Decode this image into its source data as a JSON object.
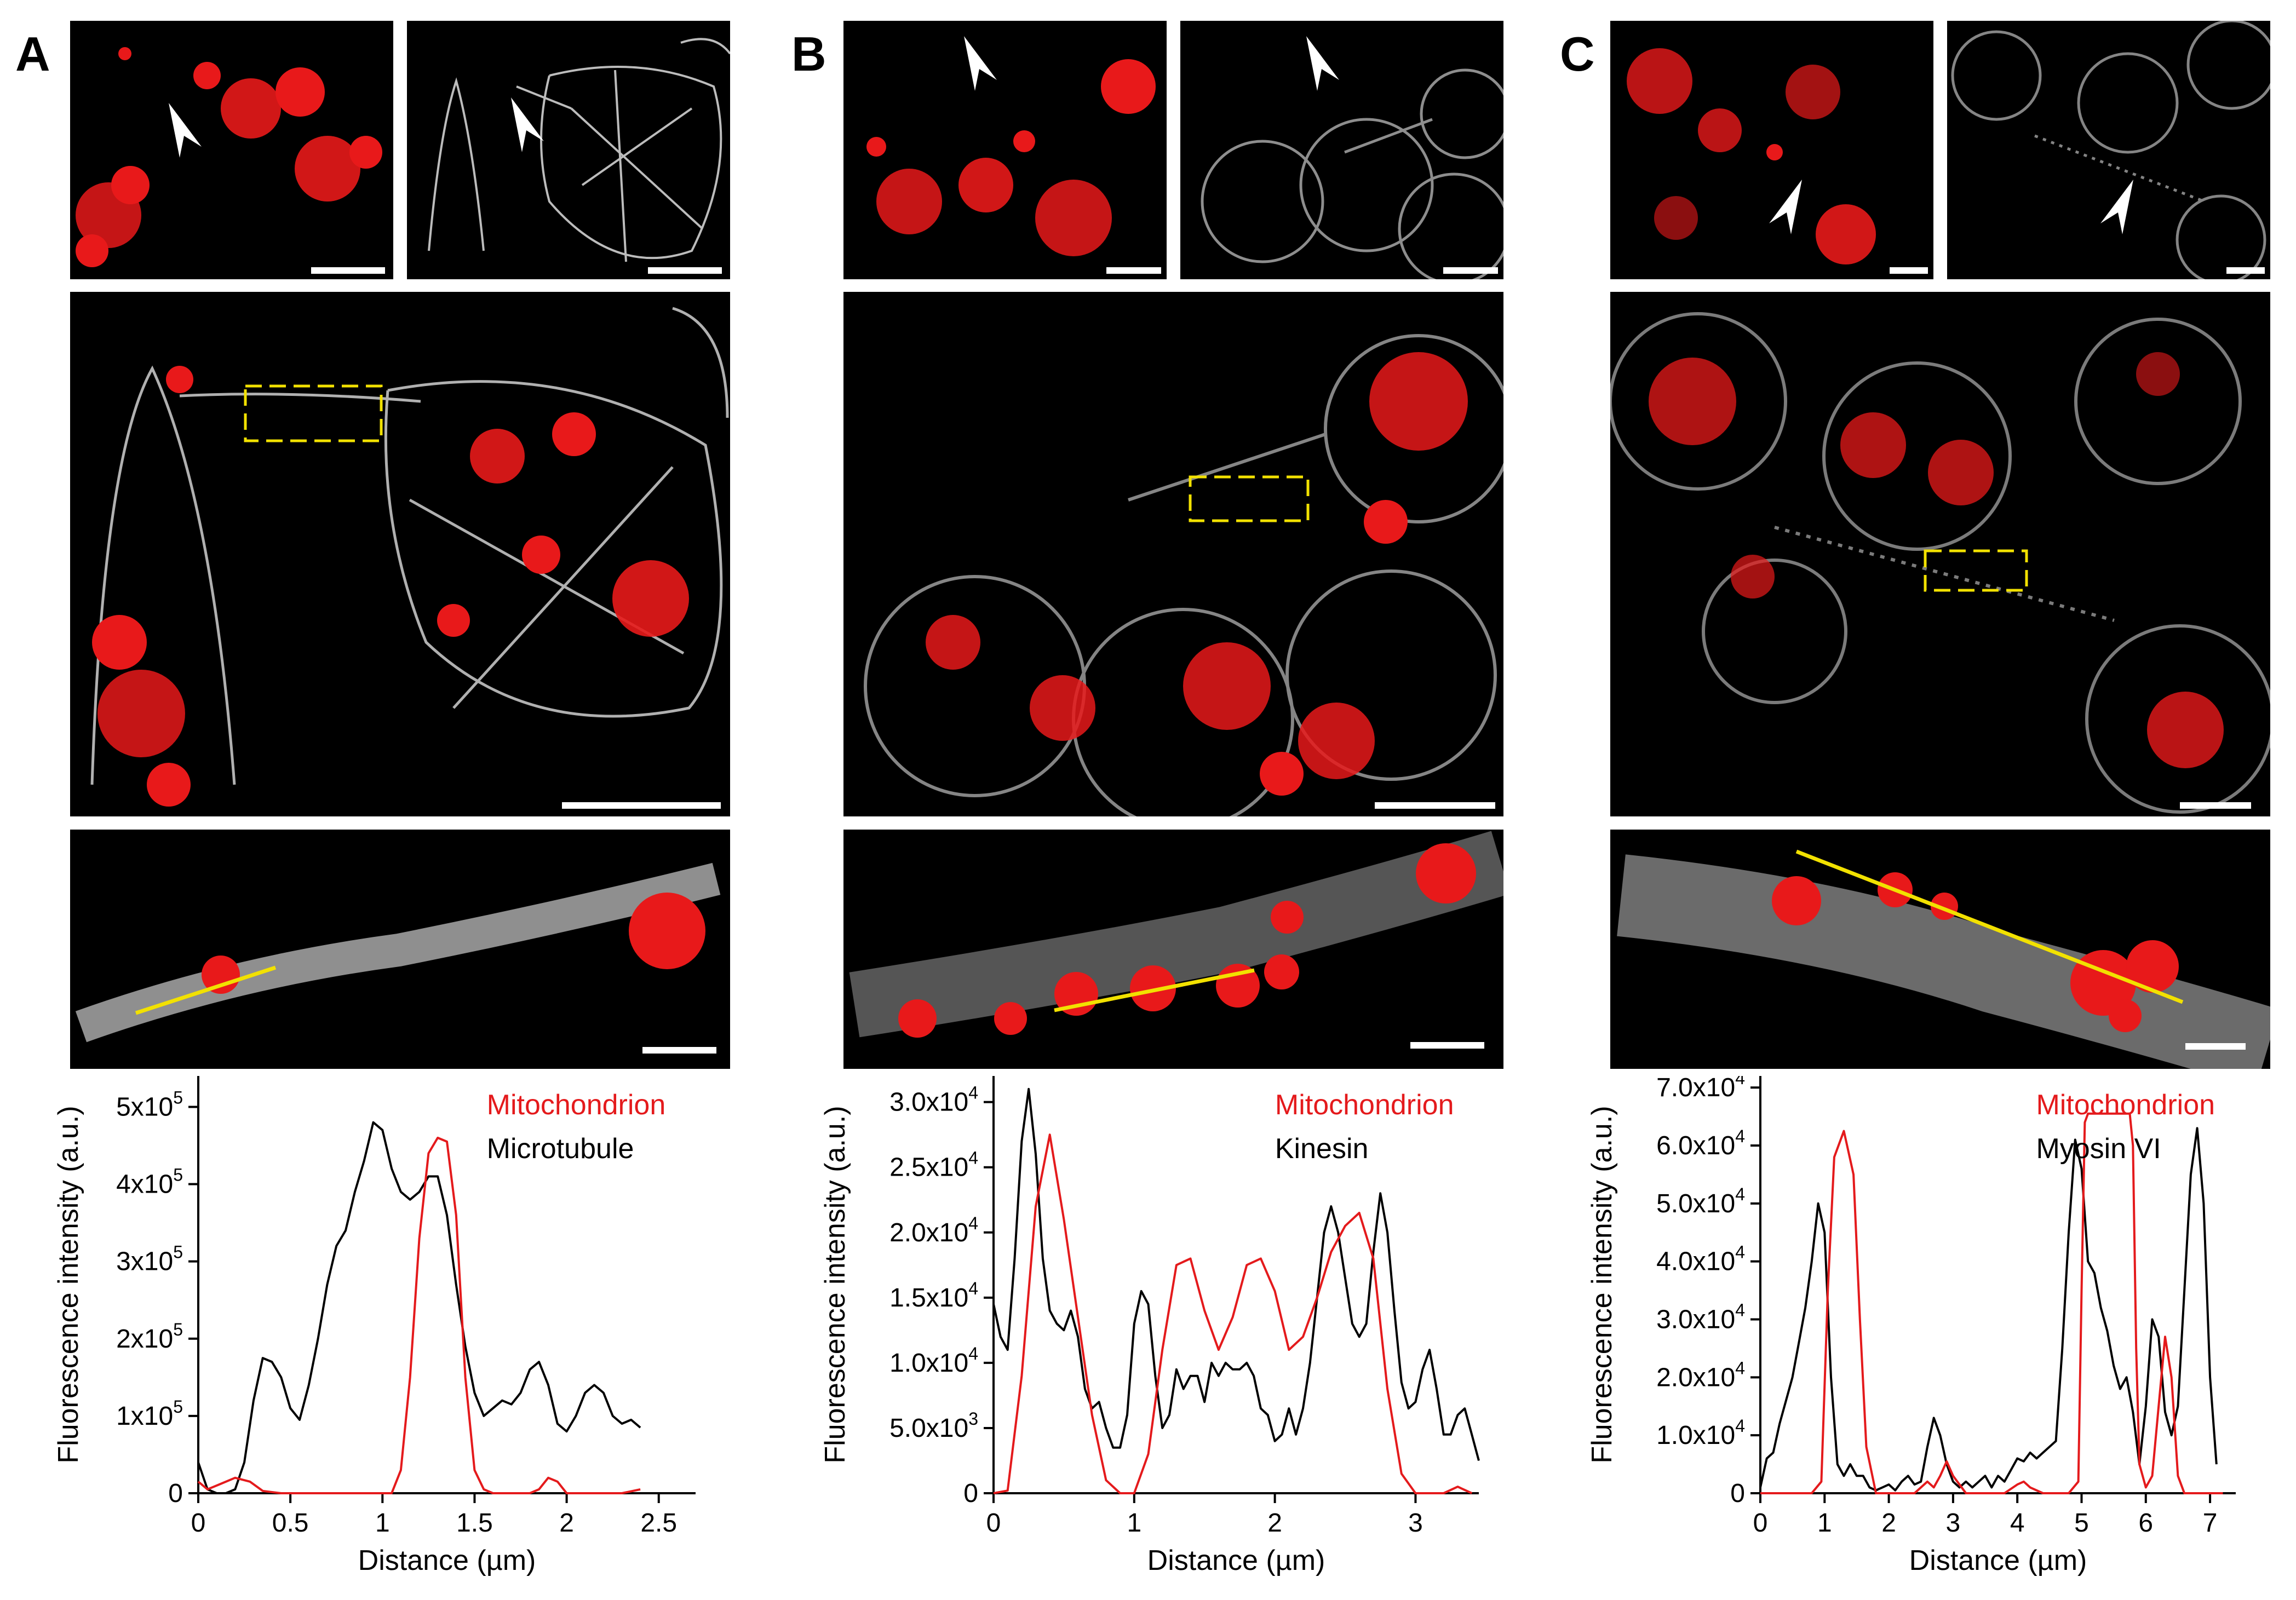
{
  "panels": [
    {
      "letter": "A"
    },
    {
      "letter": "B"
    },
    {
      "letter": "C"
    }
  ],
  "chart_data": [
    {
      "type": "line",
      "panel": "A",
      "xlabel": "Distance (µm)",
      "ylabel": "Fluorescence intensity (a.u.)",
      "xlim": [
        0,
        2.7
      ],
      "ylim": [
        0,
        540000
      ],
      "xticks": [
        0,
        0.5,
        1,
        1.5,
        2,
        2.5
      ],
      "xtick_labels": [
        "0",
        "0.5",
        "1",
        "1.5",
        "2",
        "2.5"
      ],
      "yticks": [
        0,
        100000,
        200000,
        300000,
        400000,
        500000
      ],
      "ytick_labels": [
        {
          "main": "0",
          "exp": ""
        },
        {
          "main": "1x10",
          "exp": "5"
        },
        {
          "main": "2x10",
          "exp": "5"
        },
        {
          "main": "3x10",
          "exp": "5"
        },
        {
          "main": "4x10",
          "exp": "5"
        },
        {
          "main": "5x10",
          "exp": "5"
        }
      ],
      "legend": "top-right",
      "series": [
        {
          "name": "Mitochondrion",
          "color": "#e41a1c",
          "x": [
            0,
            0.05,
            0.12,
            0.2,
            0.28,
            0.35,
            0.45,
            0.55,
            0.65,
            0.75,
            0.85,
            0.95,
            1.0,
            1.05,
            1.1,
            1.15,
            1.2,
            1.25,
            1.3,
            1.35,
            1.4,
            1.45,
            1.5,
            1.55,
            1.6,
            1.7,
            1.8,
            1.85,
            1.9,
            1.95,
            2.0,
            2.05,
            2.1,
            2.2,
            2.3,
            2.4
          ],
          "y": [
            15000,
            5000,
            12000,
            20000,
            15000,
            3000,
            0,
            0,
            0,
            0,
            0,
            0,
            0,
            0,
            30000,
            150000,
            330000,
            440000,
            460000,
            455000,
            360000,
            150000,
            30000,
            5000,
            0,
            0,
            0,
            5000,
            20000,
            15000,
            0,
            0,
            0,
            0,
            0,
            5000
          ]
        },
        {
          "name": "Microtubule",
          "color": "#000000",
          "x": [
            0,
            0.05,
            0.1,
            0.15,
            0.2,
            0.25,
            0.3,
            0.35,
            0.4,
            0.45,
            0.5,
            0.55,
            0.6,
            0.65,
            0.7,
            0.75,
            0.8,
            0.85,
            0.9,
            0.95,
            1.0,
            1.05,
            1.1,
            1.15,
            1.2,
            1.25,
            1.3,
            1.35,
            1.4,
            1.45,
            1.5,
            1.55,
            1.6,
            1.65,
            1.7,
            1.75,
            1.8,
            1.85,
            1.9,
            1.95,
            2.0,
            2.05,
            2.1,
            2.15,
            2.2,
            2.25,
            2.3,
            2.35,
            2.4
          ],
          "y": [
            40000,
            5000,
            0,
            0,
            5000,
            40000,
            120000,
            175000,
            170000,
            150000,
            110000,
            95000,
            140000,
            200000,
            270000,
            320000,
            340000,
            390000,
            430000,
            480000,
            470000,
            420000,
            390000,
            380000,
            390000,
            410000,
            410000,
            360000,
            270000,
            190000,
            130000,
            100000,
            110000,
            120000,
            115000,
            130000,
            160000,
            170000,
            140000,
            90000,
            80000,
            100000,
            130000,
            140000,
            130000,
            100000,
            90000,
            95000,
            85000
          ]
        }
      ]
    },
    {
      "type": "line",
      "panel": "B",
      "xlabel": "Distance (µm)",
      "ylabel": "Fluorescence intensity (a.u.)",
      "xlim": [
        0,
        3.45
      ],
      "ylim": [
        0,
        32000
      ],
      "xticks": [
        0,
        1,
        2,
        3
      ],
      "xtick_labels": [
        "0",
        "1",
        "2",
        "3"
      ],
      "yticks": [
        0,
        5000,
        10000,
        15000,
        20000,
        25000,
        30000
      ],
      "ytick_labels": [
        {
          "main": "0",
          "exp": ""
        },
        {
          "main": "5.0x10",
          "exp": "3"
        },
        {
          "main": "1.0x10",
          "exp": "4"
        },
        {
          "main": "1.5x10",
          "exp": "4"
        },
        {
          "main": "2.0x10",
          "exp": "4"
        },
        {
          "main": "2.5x10",
          "exp": "4"
        },
        {
          "main": "3.0x10",
          "exp": "4"
        }
      ],
      "legend": "top-right",
      "series": [
        {
          "name": "Mitochondrion",
          "color": "#e41a1c",
          "x": [
            0,
            0.1,
            0.2,
            0.3,
            0.4,
            0.5,
            0.6,
            0.7,
            0.8,
            0.9,
            1.0,
            1.1,
            1.2,
            1.3,
            1.4,
            1.5,
            1.6,
            1.7,
            1.8,
            1.9,
            2.0,
            2.1,
            2.2,
            2.3,
            2.4,
            2.5,
            2.6,
            2.7,
            2.8,
            2.9,
            3.0,
            3.1,
            3.2,
            3.3,
            3.4
          ],
          "y": [
            0,
            200,
            9000,
            22000,
            27500,
            21000,
            13500,
            6000,
            1000,
            0,
            0,
            3000,
            11000,
            17500,
            18000,
            14000,
            11000,
            13500,
            17500,
            18000,
            15500,
            11000,
            12000,
            15000,
            18500,
            20500,
            21500,
            18000,
            8000,
            1500,
            0,
            0,
            0,
            500,
            0
          ]
        },
        {
          "name": "Kinesin",
          "color": "#000000",
          "x": [
            0,
            0.05,
            0.1,
            0.15,
            0.2,
            0.25,
            0.3,
            0.35,
            0.4,
            0.45,
            0.5,
            0.55,
            0.6,
            0.65,
            0.7,
            0.75,
            0.8,
            0.85,
            0.9,
            0.95,
            1.0,
            1.05,
            1.1,
            1.15,
            1.2,
            1.25,
            1.3,
            1.35,
            1.4,
            1.45,
            1.5,
            1.55,
            1.6,
            1.65,
            1.7,
            1.75,
            1.8,
            1.85,
            1.9,
            1.95,
            2.0,
            2.05,
            2.1,
            2.15,
            2.2,
            2.25,
            2.3,
            2.35,
            2.4,
            2.45,
            2.5,
            2.55,
            2.6,
            2.65,
            2.7,
            2.75,
            2.8,
            2.85,
            2.9,
            2.95,
            3.0,
            3.05,
            3.1,
            3.15,
            3.2,
            3.25,
            3.3,
            3.35,
            3.4,
            3.45
          ],
          "y": [
            14500,
            12000,
            11000,
            18000,
            27000,
            31000,
            26000,
            18000,
            14000,
            13000,
            12500,
            14000,
            12000,
            8000,
            6500,
            7000,
            5000,
            3500,
            3500,
            6000,
            13000,
            15500,
            14500,
            9000,
            5000,
            6000,
            9500,
            8000,
            9000,
            9000,
            7000,
            10000,
            9000,
            10000,
            9500,
            9500,
            10000,
            9000,
            6500,
            6000,
            4000,
            4500,
            6500,
            4500,
            6500,
            10000,
            15000,
            20000,
            22000,
            20000,
            16500,
            13000,
            12000,
            13000,
            18500,
            23000,
            20000,
            14000,
            8500,
            6500,
            7000,
            9500,
            11000,
            8000,
            4500,
            4500,
            6000,
            6500,
            4500,
            2500
          ]
        }
      ]
    },
    {
      "type": "line",
      "panel": "C",
      "xlabel": "Distance (µm)",
      "ylabel": "Fluorescence intensity (a.u.)",
      "xlim": [
        0,
        7.4
      ],
      "ylim": [
        0,
        72000
      ],
      "xticks": [
        0,
        1,
        2,
        3,
        4,
        5,
        6,
        7
      ],
      "xtick_labels": [
        "0",
        "1",
        "2",
        "3",
        "4",
        "5",
        "6",
        "7"
      ],
      "yticks": [
        0,
        10000,
        20000,
        30000,
        40000,
        50000,
        60000,
        70000
      ],
      "ytick_labels": [
        {
          "main": "0",
          "exp": ""
        },
        {
          "main": "1.0x10",
          "exp": "4"
        },
        {
          "main": "2.0x10",
          "exp": "4"
        },
        {
          "main": "3.0x10",
          "exp": "4"
        },
        {
          "main": "4.0x10",
          "exp": "4"
        },
        {
          "main": "5.0x10",
          "exp": "4"
        },
        {
          "main": "6.0x10",
          "exp": "4"
        },
        {
          "main": "7.0x10",
          "exp": "4"
        }
      ],
      "legend": "top-right",
      "series": [
        {
          "name": "Mitochondrion",
          "color": "#e41a1c",
          "x": [
            0,
            0.5,
            0.8,
            0.95,
            1.05,
            1.15,
            1.3,
            1.45,
            1.55,
            1.65,
            1.8,
            2.0,
            2.4,
            2.5,
            2.6,
            2.7,
            2.8,
            2.9,
            3.0,
            3.2,
            3.8,
            4.0,
            4.1,
            4.2,
            4.4,
            4.6,
            4.8,
            4.95,
            5.0,
            5.05,
            5.1,
            5.75,
            5.8,
            5.85,
            5.9,
            6.0,
            6.1,
            6.2,
            6.3,
            6.4,
            6.5,
            6.6,
            7.0,
            7.2
          ],
          "y": [
            0,
            0,
            0,
            2000,
            35000,
            58000,
            62500,
            55000,
            30000,
            8000,
            0,
            0,
            0,
            1000,
            2000,
            1000,
            3000,
            5500,
            3000,
            0,
            0,
            1500,
            2000,
            1000,
            0,
            0,
            0,
            2000,
            35000,
            64000,
            65500,
            65500,
            60000,
            25000,
            5000,
            1000,
            3000,
            15000,
            27000,
            20000,
            3000,
            0,
            0,
            0
          ]
        },
        {
          "name": "Myosin VI",
          "color": "#000000",
          "x": [
            0,
            0.1,
            0.2,
            0.3,
            0.4,
            0.5,
            0.6,
            0.7,
            0.8,
            0.9,
            1.0,
            1.1,
            1.2,
            1.3,
            1.4,
            1.5,
            1.6,
            1.7,
            1.8,
            1.9,
            2.0,
            2.1,
            2.2,
            2.3,
            2.4,
            2.5,
            2.6,
            2.7,
            2.8,
            2.9,
            3.0,
            3.1,
            3.2,
            3.3,
            3.4,
            3.5,
            3.6,
            3.7,
            3.8,
            3.9,
            4.0,
            4.1,
            4.2,
            4.3,
            4.4,
            4.5,
            4.6,
            4.7,
            4.8,
            4.9,
            5.0,
            5.1,
            5.2,
            5.3,
            5.4,
            5.5,
            5.6,
            5.7,
            5.8,
            5.9,
            6.0,
            6.1,
            6.2,
            6.3,
            6.4,
            6.5,
            6.6,
            6.7,
            6.8,
            6.9,
            7.0,
            7.1
          ],
          "y": [
            1000,
            6000,
            7000,
            12000,
            16000,
            20000,
            26000,
            32000,
            40000,
            50000,
            45000,
            20000,
            5000,
            3000,
            5000,
            3000,
            3000,
            1000,
            500,
            1000,
            1500,
            500,
            2000,
            3000,
            1500,
            2000,
            8000,
            13000,
            10000,
            5000,
            2000,
            1000,
            2000,
            1000,
            2000,
            3000,
            1000,
            3000,
            2000,
            4000,
            6000,
            5500,
            7000,
            6000,
            7000,
            8000,
            9000,
            25000,
            45000,
            61000,
            56000,
            40000,
            38000,
            32000,
            28000,
            22000,
            18000,
            20000,
            14000,
            5000,
            15000,
            30000,
            27000,
            14000,
            10000,
            15000,
            35000,
            55000,
            63000,
            50000,
            20000,
            5000
          ]
        }
      ]
    }
  ]
}
